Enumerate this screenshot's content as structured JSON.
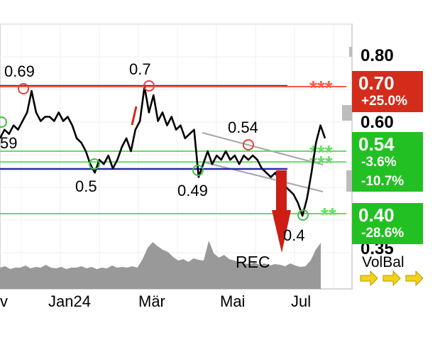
{
  "chart_data": {
    "type": "line",
    "x_tick_labels": [
      "v",
      "Jan24",
      "Mär",
      "Mai",
      "Jul"
    ],
    "y_tick_labels": [
      "0.80",
      "0.60",
      "0.35"
    ],
    "ylim": [
      0.35,
      0.82
    ],
    "series": [
      {
        "values": [
          0.58,
          0.6,
          0.59,
          0.61,
          0.6,
          0.62,
          0.64,
          0.69,
          0.64,
          0.62,
          0.63,
          0.63,
          0.62,
          0.64,
          0.62,
          0.63,
          0.61,
          0.58,
          0.57,
          0.55,
          0.52,
          0.5,
          0.53,
          0.52,
          0.54,
          0.51,
          0.53,
          0.56,
          0.58,
          0.55,
          0.6,
          0.62,
          0.7,
          0.64,
          0.68,
          0.62,
          0.64,
          0.61,
          0.63,
          0.6,
          0.61,
          0.58,
          0.59,
          0.6,
          0.49,
          0.52,
          0.55,
          0.52,
          0.54,
          0.53,
          0.55,
          0.53,
          0.54,
          0.52,
          0.54,
          0.53,
          0.54,
          0.53,
          0.51,
          0.5,
          0.49,
          0.5,
          0.48,
          0.47,
          0.46,
          0.45,
          0.43,
          0.4,
          0.44,
          0.5,
          0.57,
          0.61,
          0.58
        ]
      }
    ],
    "volume": [
      0.3,
      0.32,
      0.28,
      0.3,
      0.3,
      0.33,
      0.29,
      0.31,
      0.3,
      0.34,
      0.3,
      0.29,
      0.31,
      0.28,
      0.3,
      0.3,
      0.32,
      0.29,
      0.31,
      0.28,
      0.3,
      0.29,
      0.33,
      0.3,
      0.31,
      0.3,
      0.32,
      0.3,
      0.42,
      0.58,
      0.66,
      0.6,
      0.55,
      0.52,
      0.45,
      0.4,
      0.42,
      0.38,
      0.43,
      0.41,
      0.4,
      0.68,
      0.5,
      0.44,
      0.48,
      0.42,
      0.4,
      0.38,
      0.36,
      0.35,
      0.37,
      0.34,
      0.36,
      0.33,
      0.35,
      0.34,
      0.32,
      0.36,
      0.33,
      0.31,
      0.32,
      0.4,
      0.55,
      0.65
    ],
    "resistance_levels": [
      0.69,
      0.7,
      0.54
    ],
    "support_levels": [
      0.5,
      0.49,
      0.4
    ],
    "level_labels": {
      "left_partial": "59"
    },
    "horizontal_lines": [
      {
        "value": 0.7,
        "stars": "***",
        "color": "#ff5a4a"
      },
      {
        "value": 0.55,
        "stars": "***",
        "color": "#66dd66"
      },
      {
        "value": 0.525,
        "stars": "***",
        "color": "#66dd66"
      },
      {
        "value": 0.405,
        "stars": "**",
        "color": "#66dd66"
      }
    ],
    "badges": [
      {
        "main": "0.70",
        "sub": [
          "+25.0%"
        ],
        "color": "#d42c1b"
      },
      {
        "main": "0.54",
        "sub": [
          "-3.6%",
          "-10.7%"
        ],
        "color": "#22c022"
      },
      {
        "main": "0.40",
        "sub": [
          "-28.6%"
        ],
        "color": "#22c022"
      }
    ],
    "annotations": {
      "rec": "REC",
      "volbal": "VolBal"
    },
    "grid": true
  }
}
